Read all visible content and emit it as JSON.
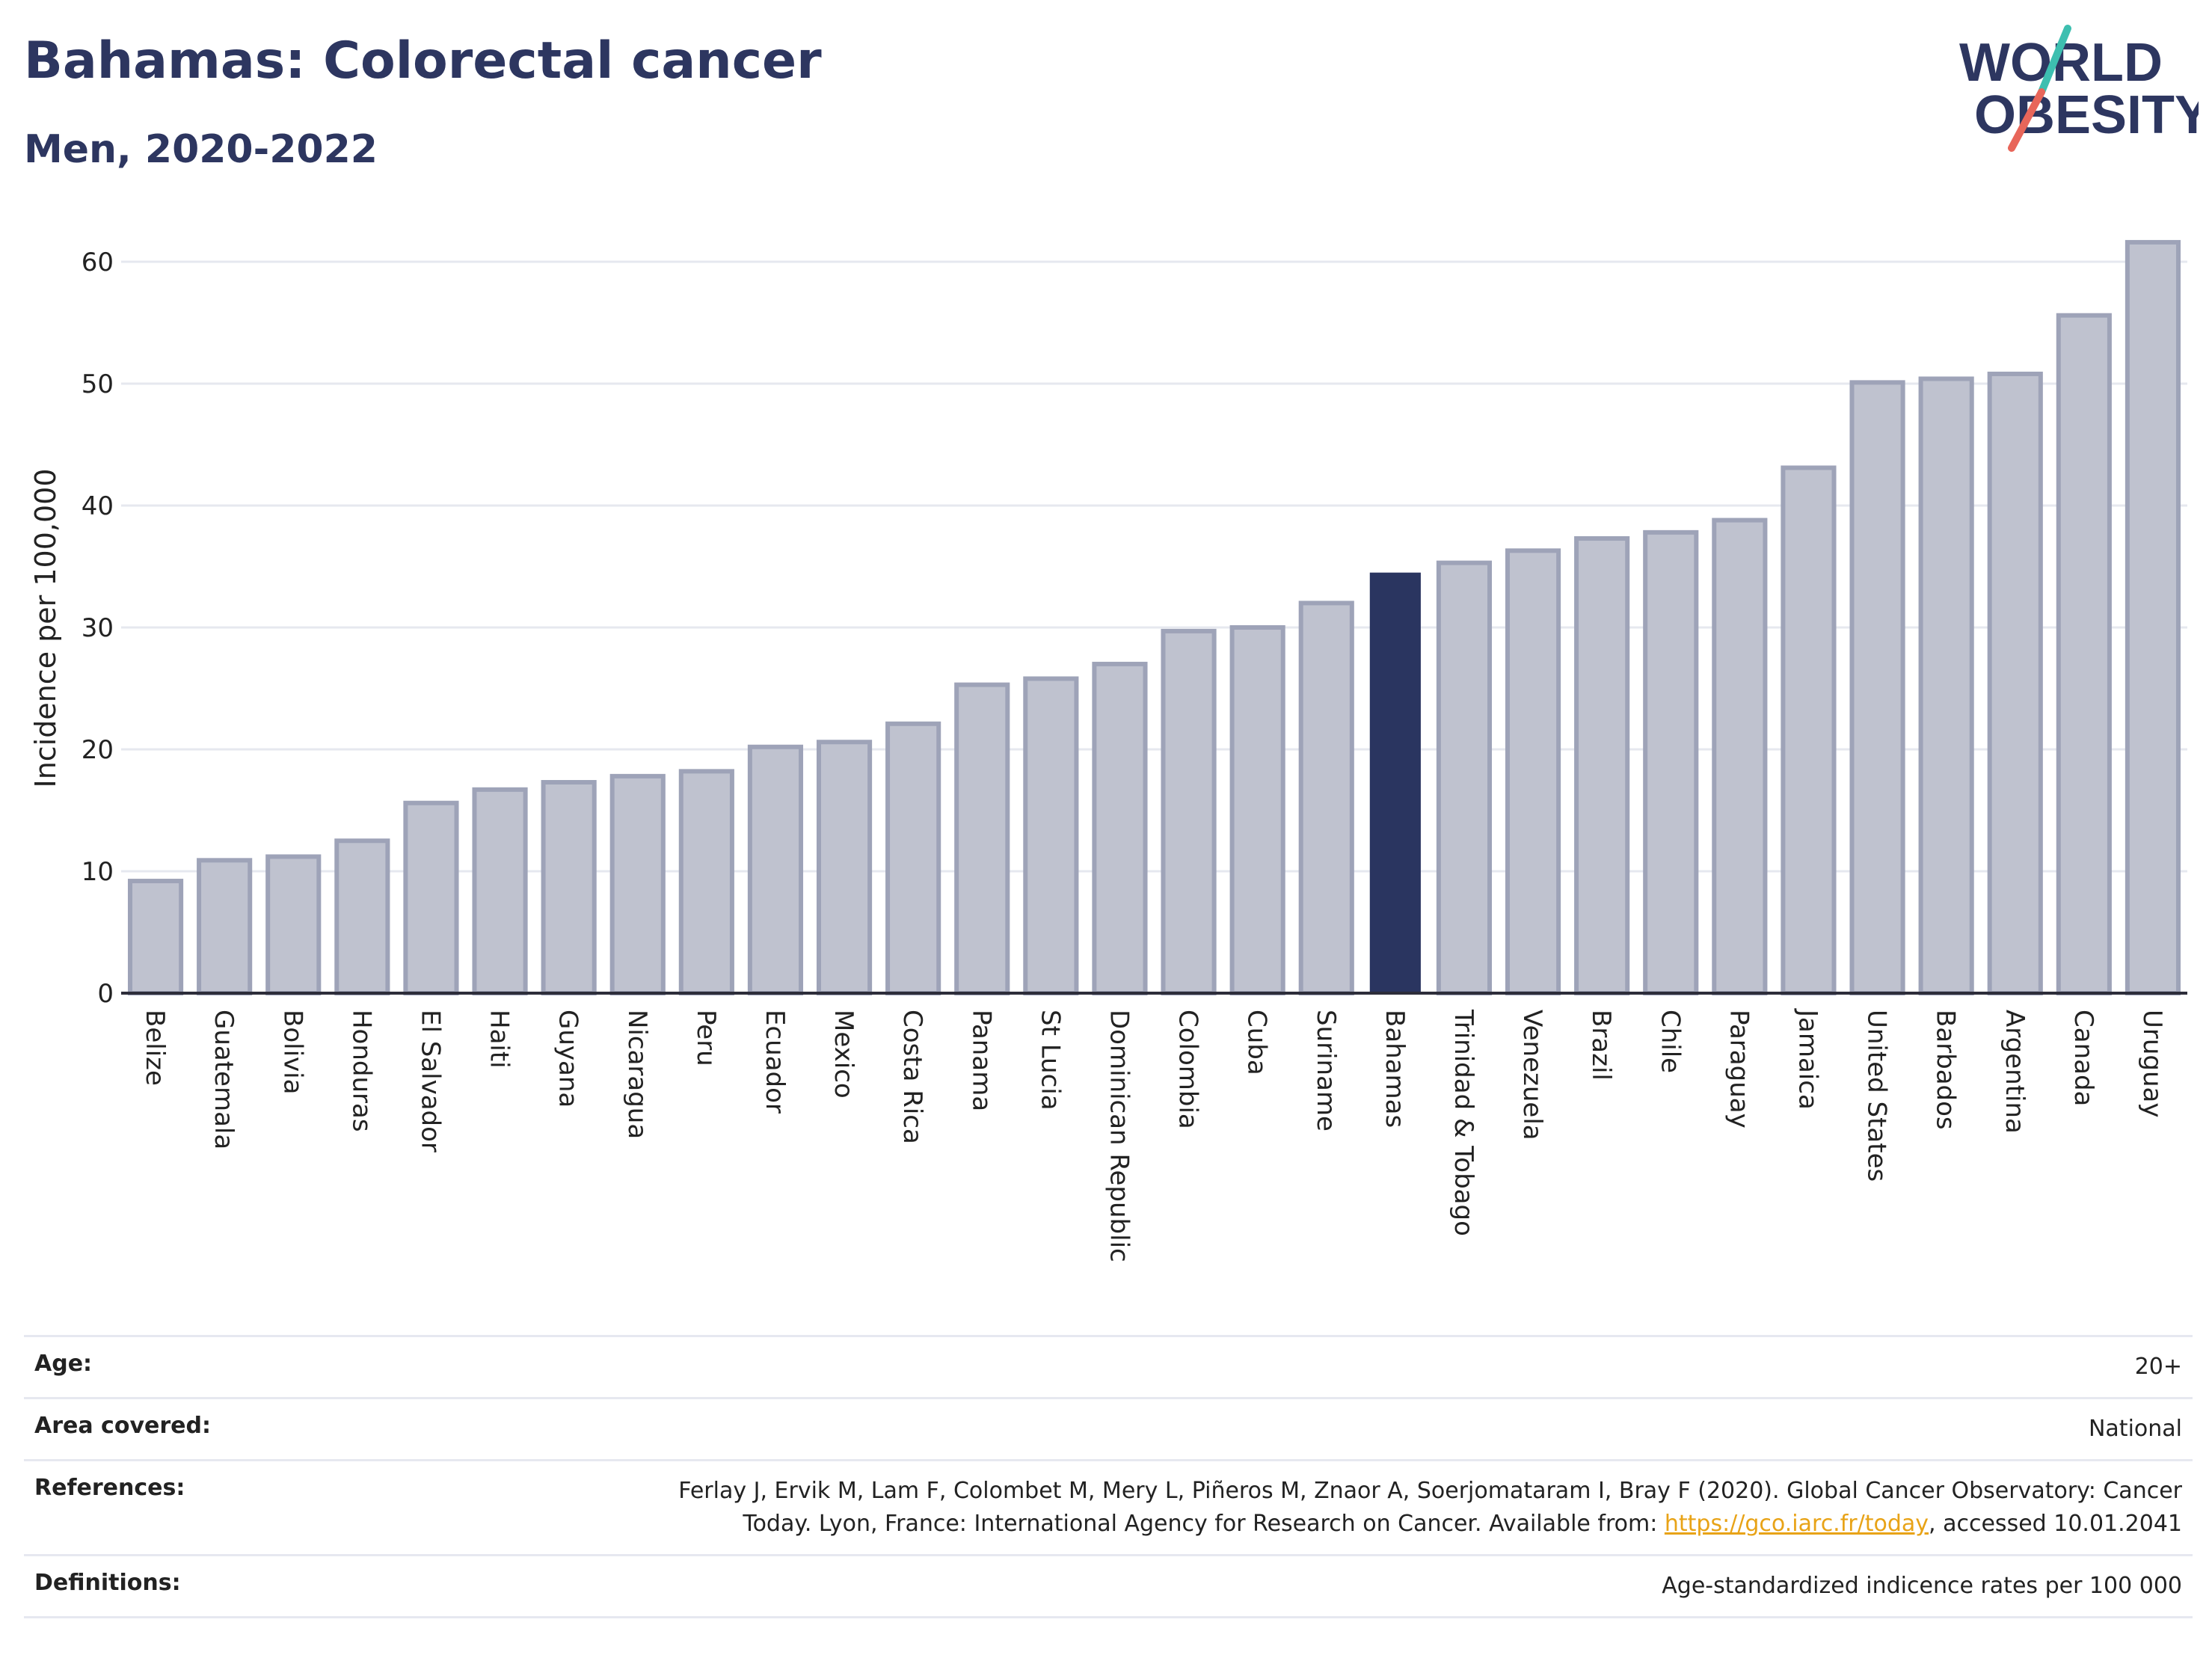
{
  "title": "Bahamas: Colorectal cancer",
  "subtitle": "Men, 2020-2022",
  "logo": {
    "line1": "WORLD",
    "line2": "OBESITY",
    "colors": {
      "text": "#2d3660",
      "slash_teal": "#3dbfb0",
      "slash_red": "#e8665a"
    }
  },
  "colors": {
    "bar": "#bfc2cf",
    "bar_stroke": "#9ea3b8",
    "highlight": "#2a3560",
    "grid": "#e6e8ef",
    "axis": "#2d2d3a"
  },
  "chart_data": {
    "type": "bar",
    "ylabel": "Incidence per 100,000",
    "ylim": [
      0,
      64
    ],
    "yticks": [
      0,
      10,
      20,
      30,
      40,
      50,
      60
    ],
    "grid": true,
    "highlight": "Bahamas",
    "categories": [
      "Belize",
      "Guatemala",
      "Bolivia",
      "Honduras",
      "El Salvador",
      "Haiti",
      "Guyana",
      "Nicaragua",
      "Peru",
      "Ecuador",
      "Mexico",
      "Costa Rica",
      "Panama",
      "St Lucia",
      "Dominican Republic",
      "Colombia",
      "Cuba",
      "Suriname",
      "Bahamas",
      "Trinidad & Tobago",
      "Venezuela",
      "Brazil",
      "Chile",
      "Paraguay",
      "Jamaica",
      "United States",
      "Barbados",
      "Argentina",
      "Canada",
      "Uruguay"
    ],
    "values": [
      9.2,
      10.9,
      11.2,
      12.5,
      15.6,
      16.7,
      17.3,
      17.8,
      18.2,
      20.2,
      20.6,
      22.1,
      25.3,
      25.8,
      27.0,
      29.7,
      30.0,
      32.0,
      34.5,
      35.3,
      36.3,
      37.3,
      37.8,
      38.8,
      43.1,
      50.1,
      50.4,
      50.8,
      55.6,
      61.6
    ]
  },
  "info": {
    "age_label": "Age:",
    "age_value": "20+",
    "area_label": "Area covered:",
    "area_value": "National",
    "references_label": "References:",
    "references_line1": "Ferlay J, Ervik M, Lam F, Colombet M, Mery L, Piñeros M, Znaor A, Soerjomataram I, Bray F (2020). Global Cancer Observatory: Cancer",
    "references_line2_pre": "Today. Lyon, France: International Agency for Research on Cancer. Available from: ",
    "references_link": "https://gco.iarc.fr/today",
    "references_line2_post": ", accessed 10.01.2041",
    "definitions_label": "Definitions:",
    "definitions_value": "Age-standardized indicence rates per 100 000"
  }
}
